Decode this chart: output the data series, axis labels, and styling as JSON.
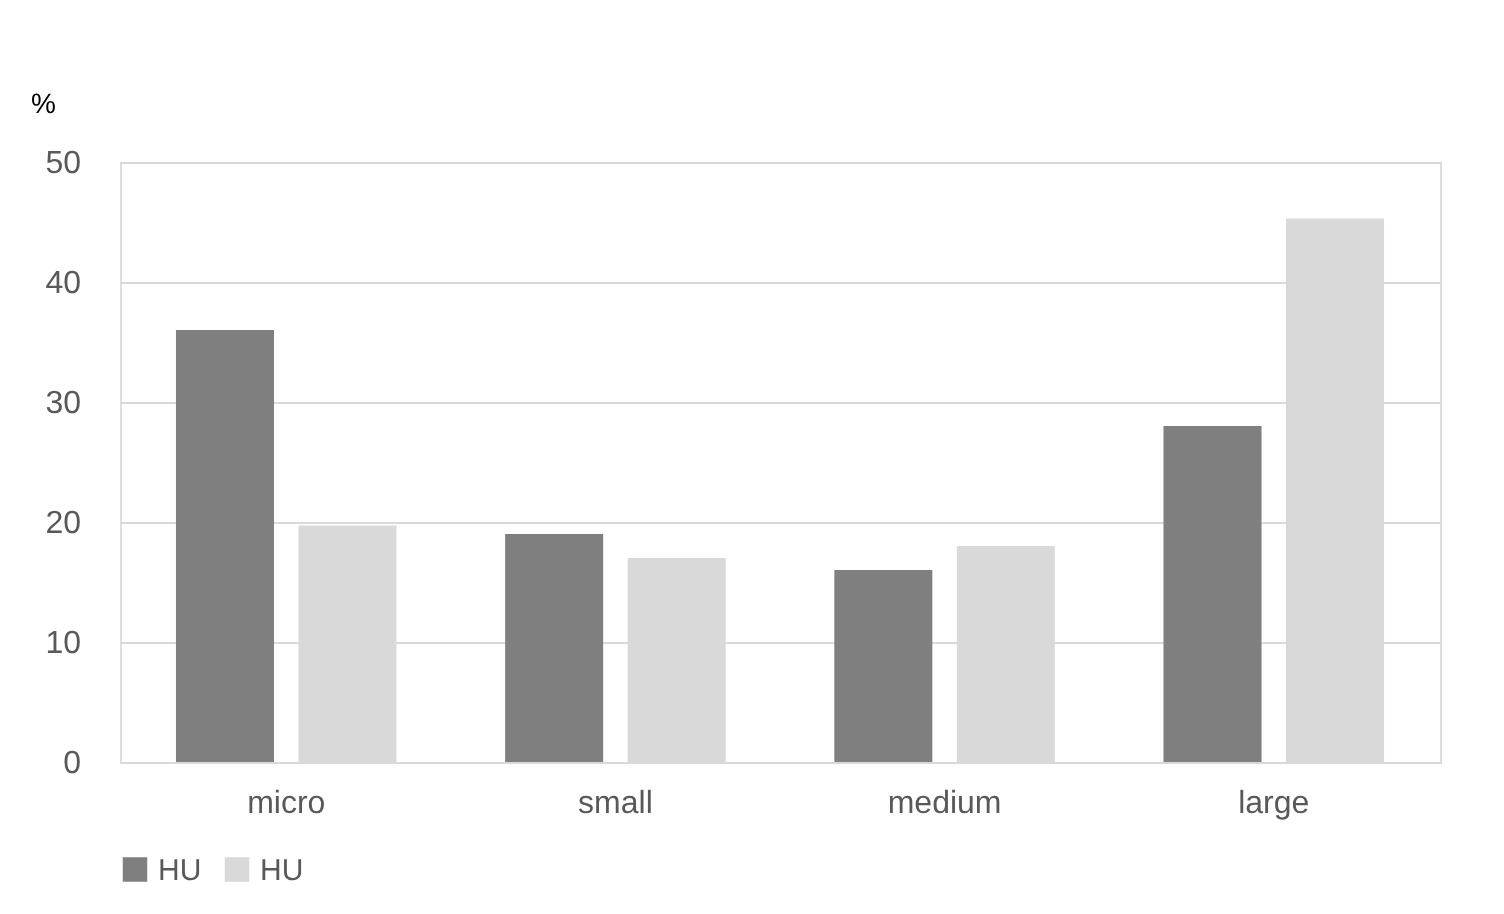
{
  "chart_data": {
    "type": "bar",
    "ylabel": "%",
    "categories": [
      "micro",
      "small",
      "medium",
      "large"
    ],
    "series": [
      {
        "name": "HU",
        "color": "#7f7f7f",
        "values": [
          36,
          19,
          16,
          28
        ]
      },
      {
        "name": "HU",
        "color": "#d9d9d9",
        "values": [
          19.7,
          17,
          18,
          45.3
        ]
      }
    ],
    "ylim": [
      0,
      50
    ],
    "yticks": [
      0,
      10,
      20,
      30,
      40,
      50
    ],
    "grid": "y",
    "legend": "bottom"
  }
}
